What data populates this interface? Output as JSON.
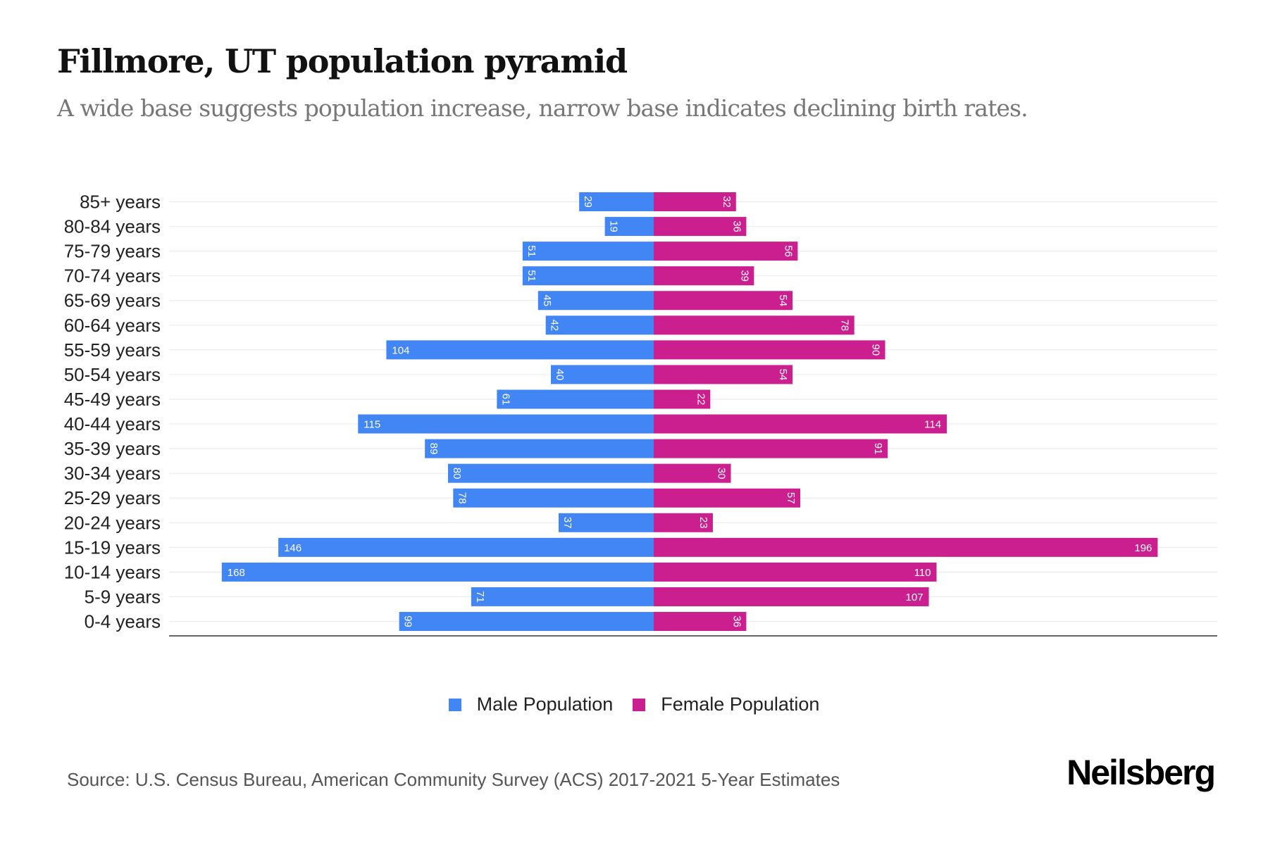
{
  "header": {
    "title": "Fillmore, UT population pyramid",
    "subtitle": "A wide base suggests population increase, narrow base indicates declining birth rates."
  },
  "chart_data": {
    "type": "bar",
    "orientation": "horizontal-diverging",
    "title": "Fillmore, UT population pyramid",
    "subtitle": "A wide base suggests population increase, narrow base indicates declining birth rates.",
    "xlabel": "",
    "ylabel": "",
    "grid": true,
    "legend_position": "bottom-center",
    "categories": [
      "85+ years",
      "80-84 years",
      "75-79 years",
      "70-74 years",
      "65-69 years",
      "60-64 years",
      "55-59 years",
      "50-54 years",
      "45-49 years",
      "40-44 years",
      "35-39 years",
      "30-34 years",
      "25-29 years",
      "20-24 years",
      "15-19 years",
      "10-14 years",
      "5-9 years",
      "0-4 years"
    ],
    "series": [
      {
        "name": "Male Population",
        "color": "#4285F4",
        "side": "left",
        "values": [
          29,
          19,
          51,
          51,
          45,
          42,
          104,
          40,
          61,
          115,
          89,
          80,
          78,
          37,
          146,
          168,
          71,
          99
        ]
      },
      {
        "name": "Female Population",
        "color": "#CC1F8F",
        "side": "right",
        "values": [
          32,
          36,
          56,
          39,
          54,
          78,
          90,
          54,
          22,
          114,
          91,
          30,
          57,
          23,
          196,
          110,
          107,
          36
        ]
      }
    ],
    "xlim": [
      -196,
      196
    ]
  },
  "legend": {
    "items": [
      {
        "label": "Male Population",
        "color": "#4285F4"
      },
      {
        "label": "Female Population",
        "color": "#CC1F8F"
      }
    ]
  },
  "footer": {
    "source": "Source: U.S. Census Bureau, American Community Survey (ACS) 2017-2021 5-Year Estimates",
    "brand": "Neilsberg"
  }
}
